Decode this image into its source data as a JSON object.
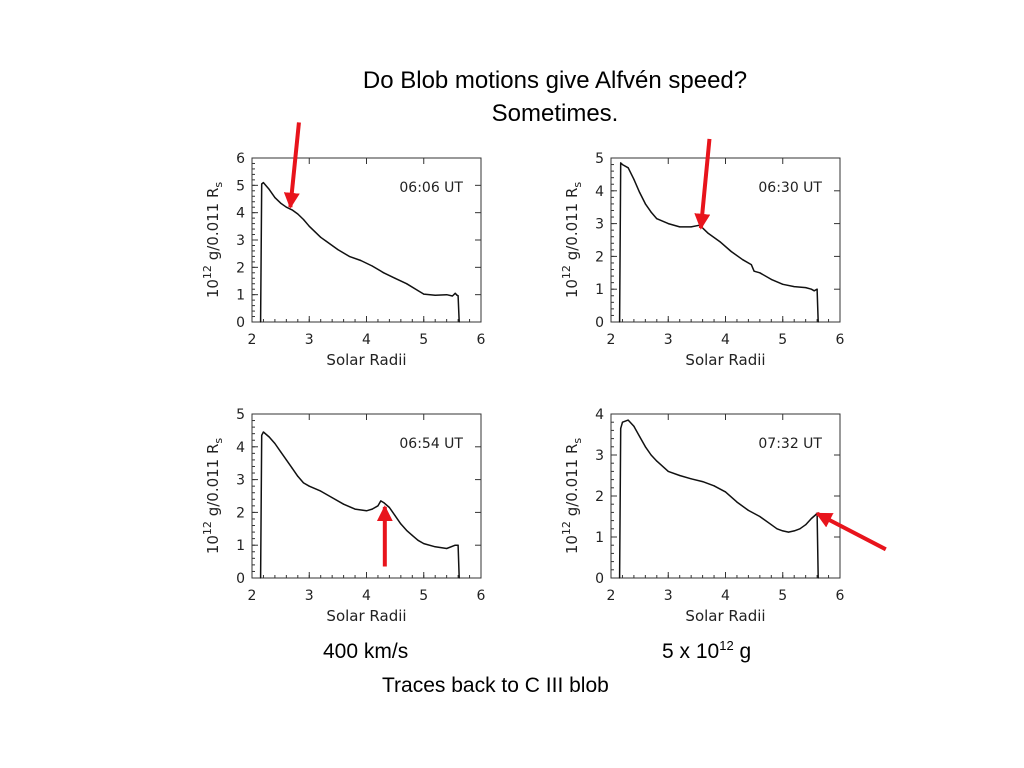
{
  "slide": {
    "title_line1": "Do Blob motions give Alfvén speed?",
    "title_line2": "Sometimes.",
    "note_speed": "400 km/s",
    "note_mass_prefix": "5 x 10",
    "note_mass_exp": "12",
    "note_mass_suffix": " g",
    "note_trace": "Traces back to C III blob"
  },
  "colors": {
    "curve": "#111111",
    "arrow": "#e8141c",
    "axes": "#333333"
  },
  "chart_data": [
    {
      "type": "line",
      "annotation": "06:06 UT",
      "xlabel": "Solar Radii",
      "ylabel_base": "10",
      "ylabel_exp": "12",
      "ylabel_unit": "g/0.011 R",
      "ylabel_sub": "s",
      "xlim": [
        2,
        6
      ],
      "ylim": [
        0,
        6
      ],
      "xticks": [
        2,
        3,
        4,
        5,
        6
      ],
      "yticks": [
        0,
        1,
        2,
        3,
        4,
        5,
        6
      ],
      "series": [
        {
          "x": [
            2.15,
            2.17,
            2.2,
            2.3,
            2.4,
            2.5,
            2.6,
            2.7,
            2.8,
            2.9,
            3.0,
            3.1,
            3.2,
            3.3,
            3.5,
            3.7,
            3.9,
            4.1,
            4.3,
            4.5,
            4.7,
            4.9,
            5.0,
            5.2,
            5.4,
            5.5,
            5.55,
            5.58,
            5.6,
            5.62
          ],
          "y": [
            0,
            5.05,
            5.1,
            4.85,
            4.55,
            4.35,
            4.2,
            4.1,
            3.95,
            3.75,
            3.5,
            3.3,
            3.1,
            2.95,
            2.65,
            2.4,
            2.25,
            2.05,
            1.8,
            1.6,
            1.4,
            1.15,
            1.02,
            0.98,
            1.0,
            0.95,
            1.05,
            0.98,
            0.96,
            0
          ]
        }
      ],
      "arrow": {
        "tail": [
          2.82,
          7.3
        ],
        "head": [
          2.67,
          4.2
        ]
      }
    },
    {
      "type": "line",
      "annotation": "06:30 UT",
      "xlabel": "Solar Radii",
      "ylabel_base": "10",
      "ylabel_exp": "12",
      "ylabel_unit": "g/0.011 R",
      "ylabel_sub": "s",
      "xlim": [
        2,
        6
      ],
      "ylim": [
        0,
        5
      ],
      "xticks": [
        2,
        3,
        4,
        5,
        6
      ],
      "yticks": [
        0,
        1,
        2,
        3,
        4,
        5
      ],
      "series": [
        {
          "x": [
            2.15,
            2.17,
            2.2,
            2.3,
            2.4,
            2.5,
            2.6,
            2.7,
            2.8,
            3.0,
            3.2,
            3.4,
            3.55,
            3.7,
            3.9,
            4.1,
            4.3,
            4.45,
            4.5,
            4.6,
            4.8,
            5.0,
            5.2,
            5.4,
            5.5,
            5.55,
            5.6,
            5.62
          ],
          "y": [
            0,
            4.85,
            4.8,
            4.7,
            4.35,
            3.95,
            3.6,
            3.35,
            3.15,
            3.0,
            2.9,
            2.9,
            2.95,
            2.7,
            2.45,
            2.15,
            1.9,
            1.75,
            1.55,
            1.5,
            1.3,
            1.15,
            1.08,
            1.05,
            1.0,
            0.95,
            1.0,
            0
          ]
        }
      ],
      "arrow": {
        "tail": [
          3.72,
          5.58
        ],
        "head": [
          3.57,
          2.86
        ]
      }
    },
    {
      "type": "line",
      "annotation": "06:54 UT",
      "xlabel": "Solar Radii",
      "ylabel_base": "10",
      "ylabel_exp": "12",
      "ylabel_unit": "g/0.011 R",
      "ylabel_sub": "s",
      "xlim": [
        2,
        6
      ],
      "ylim": [
        0,
        5
      ],
      "xticks": [
        2,
        3,
        4,
        5,
        6
      ],
      "yticks": [
        0,
        1,
        2,
        3,
        4,
        5
      ],
      "series": [
        {
          "x": [
            2.15,
            2.17,
            2.2,
            2.3,
            2.4,
            2.5,
            2.6,
            2.7,
            2.8,
            2.9,
            3.0,
            3.2,
            3.4,
            3.6,
            3.8,
            4.0,
            4.1,
            4.2,
            4.25,
            4.3,
            4.4,
            4.5,
            4.6,
            4.7,
            4.8,
            4.9,
            5.0,
            5.2,
            5.4,
            5.55,
            5.6,
            5.62
          ],
          "y": [
            0,
            4.35,
            4.45,
            4.3,
            4.1,
            3.85,
            3.6,
            3.35,
            3.1,
            2.9,
            2.8,
            2.65,
            2.45,
            2.25,
            2.1,
            2.05,
            2.1,
            2.2,
            2.35,
            2.3,
            2.15,
            1.9,
            1.65,
            1.45,
            1.3,
            1.15,
            1.05,
            0.95,
            0.9,
            1.0,
            1.0,
            0
          ]
        }
      ],
      "arrow": {
        "tail": [
          4.32,
          0.35
        ],
        "head": [
          4.32,
          2.17
        ]
      }
    },
    {
      "type": "line",
      "annotation": "07:32 UT",
      "xlabel": "Solar Radii",
      "ylabel_base": "10",
      "ylabel_exp": "12",
      "ylabel_unit": "g/0.011 R",
      "ylabel_sub": "s",
      "xlim": [
        2,
        6
      ],
      "ylim": [
        0,
        4
      ],
      "xticks": [
        2,
        3,
        4,
        5,
        6
      ],
      "yticks": [
        0,
        1,
        2,
        3,
        4
      ],
      "series": [
        {
          "x": [
            2.15,
            2.17,
            2.2,
            2.3,
            2.4,
            2.5,
            2.6,
            2.7,
            2.8,
            3.0,
            3.2,
            3.4,
            3.6,
            3.8,
            4.0,
            4.2,
            4.4,
            4.6,
            4.8,
            4.9,
            5.0,
            5.1,
            5.2,
            5.3,
            5.4,
            5.5,
            5.58,
            5.6,
            5.62
          ],
          "y": [
            0,
            3.65,
            3.8,
            3.85,
            3.7,
            3.45,
            3.2,
            3.0,
            2.85,
            2.6,
            2.5,
            2.42,
            2.35,
            2.25,
            2.1,
            1.85,
            1.65,
            1.5,
            1.3,
            1.2,
            1.15,
            1.12,
            1.15,
            1.2,
            1.3,
            1.45,
            1.55,
            1.58,
            0
          ]
        }
      ],
      "arrow": {
        "tail": [
          6.8,
          0.7
        ],
        "head": [
          5.6,
          1.57
        ]
      }
    }
  ]
}
